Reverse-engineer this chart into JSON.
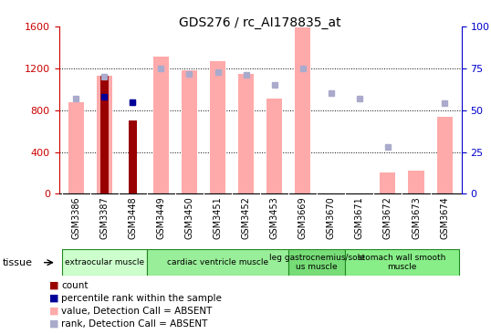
{
  "title": "GDS276 / rc_AI178835_at",
  "samples": [
    "GSM3386",
    "GSM3387",
    "GSM3448",
    "GSM3449",
    "GSM3450",
    "GSM3451",
    "GSM3452",
    "GSM3453",
    "GSM3669",
    "GSM3670",
    "GSM3671",
    "GSM3672",
    "GSM3673",
    "GSM3674"
  ],
  "value_absent": [
    880,
    1130,
    null,
    1310,
    1180,
    1270,
    1150,
    910,
    1590,
    null,
    null,
    200,
    220,
    740
  ],
  "rank_absent": [
    57,
    70,
    55,
    75,
    72,
    73,
    71,
    65,
    75,
    60,
    57,
    28,
    null,
    54
  ],
  "count": [
    null,
    1130,
    700,
    null,
    null,
    null,
    null,
    null,
    null,
    null,
    null,
    null,
    null,
    null
  ],
  "percentile": [
    null,
    58,
    55,
    null,
    null,
    null,
    null,
    null,
    null,
    null,
    null,
    null,
    null,
    null
  ],
  "ylim_left": [
    0,
    1600
  ],
  "ylim_right": [
    0,
    100
  ],
  "yticks_left": [
    0,
    400,
    800,
    1200,
    1600
  ],
  "yticks_right": [
    0,
    25,
    50,
    75,
    100
  ],
  "left_color": "#cc0000",
  "right_color": "#0000cc",
  "value_absent_color": "#ffaaaa",
  "rank_absent_color": "#aaaacc",
  "count_color": "#990000",
  "percentile_color": "#000099",
  "tissue_groups": [
    {
      "label": "extraocular muscle",
      "start": 0,
      "end": 2,
      "color": "#ccffcc"
    },
    {
      "label": "cardiac ventricle muscle",
      "start": 3,
      "end": 7,
      "color": "#99ee99"
    },
    {
      "label": "leg gastrocnemius/sole\nus muscle",
      "start": 8,
      "end": 9,
      "color": "#77dd77"
    },
    {
      "label": "stomach wall smooth\nmuscle",
      "start": 10,
      "end": 13,
      "color": "#88ee88"
    }
  ],
  "bg_color": "#e8e8e8",
  "legend_labels": [
    "count",
    "percentile rank within the sample",
    "value, Detection Call = ABSENT",
    "rank, Detection Call = ABSENT"
  ]
}
